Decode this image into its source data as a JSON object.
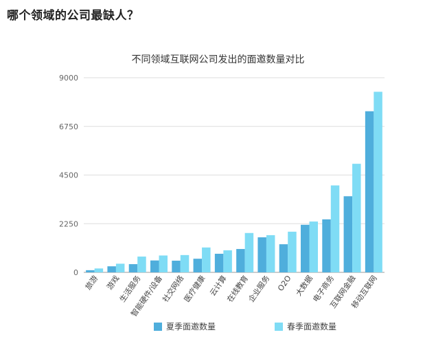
{
  "page": {
    "heading": "哪个领域的公司最缺人？"
  },
  "chart_data": {
    "type": "bar",
    "title": "不同领域互联网公司发出的面邀数量对比",
    "xlabel": "",
    "ylabel": "",
    "ylim": [
      0,
      9000
    ],
    "yticks": [
      0,
      2250,
      4500,
      6750,
      9000
    ],
    "categories": [
      "旅游",
      "游戏",
      "生活服务",
      "智能硬件/设备",
      "社交网络",
      "医疗健康",
      "云计算",
      "在线教育",
      "企业服务",
      "O2O",
      "大数据",
      "电子商务",
      "互联网金融",
      "移动互联网"
    ],
    "series": [
      {
        "name": "夏季面邀数量",
        "color": "#4faedc",
        "values": [
          100,
          280,
          380,
          550,
          540,
          630,
          860,
          1080,
          1620,
          1300,
          2200,
          2450,
          3520,
          7450
        ]
      },
      {
        "name": "春季面邀数量",
        "color": "#7fdcf5",
        "values": [
          180,
          400,
          730,
          780,
          800,
          1150,
          1020,
          1820,
          1720,
          1880,
          2350,
          4020,
          5020,
          8350
        ]
      }
    ],
    "grid": true,
    "legend_position": "bottom"
  }
}
